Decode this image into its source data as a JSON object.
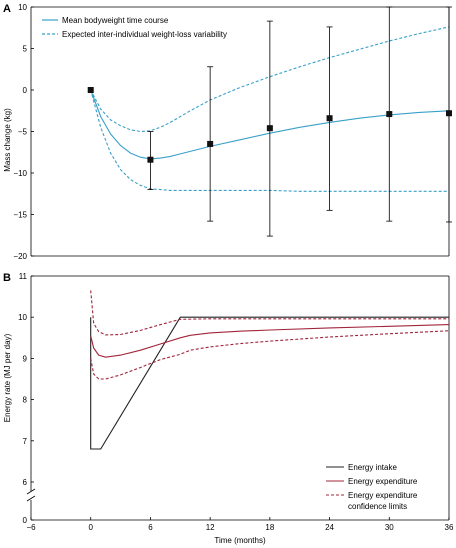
{
  "colors": {
    "mean": "#3aa0c9",
    "variability": "#3aa0c9",
    "intake": "#222222",
    "expenditure": "#a0253a",
    "confidence": "#a0253a",
    "panel_bg": "#ffffff"
  },
  "chart_data": [
    {
      "panel": "A",
      "type": "line",
      "ylabel": "Mass change (kg)",
      "ylim": [
        -20,
        10
      ],
      "yticks": [
        10,
        5,
        0,
        -5,
        -10,
        -15,
        -20
      ],
      "xlim": [
        -6,
        36
      ],
      "grid": false,
      "legend_position": "top-left",
      "series": [
        {
          "name": "Mean bodyweight time course",
          "style": "solid",
          "x": [
            0,
            1,
            2,
            3,
            4,
            5,
            6,
            7,
            8,
            9,
            10,
            12,
            15,
            18,
            21,
            24,
            27,
            30,
            33,
            36
          ],
          "y": [
            0,
            -3.2,
            -5.3,
            -6.7,
            -7.6,
            -8.1,
            -8.3,
            -8.2,
            -8.0,
            -7.7,
            -7.4,
            -6.8,
            -6.0,
            -5.2,
            -4.5,
            -3.9,
            -3.4,
            -3.0,
            -2.7,
            -2.5
          ]
        },
        {
          "name": "Expected inter-individual weight-loss variability",
          "style": "dashed",
          "x": [
            0,
            1,
            2,
            3,
            4,
            5,
            6,
            7,
            8,
            9,
            10,
            12,
            15,
            18,
            21,
            24,
            27,
            30,
            33,
            36
          ],
          "y": [
            0,
            -2.3,
            -3.6,
            -4.3,
            -4.8,
            -5.0,
            -4.9,
            -4.5,
            -3.9,
            -3.2,
            -2.5,
            -1.2,
            0.3,
            1.6,
            2.8,
            3.9,
            4.9,
            5.9,
            6.8,
            7.6
          ]
        },
        {
          "name": "",
          "style": "dashed",
          "x": [
            0,
            1,
            2,
            3,
            4,
            5,
            6,
            7,
            8,
            9,
            10,
            12,
            15,
            18,
            21,
            24,
            27,
            30,
            33,
            36
          ],
          "y": [
            0,
            -4.5,
            -7.6,
            -9.6,
            -10.8,
            -11.5,
            -11.9,
            -12.0,
            -12.1,
            -12.1,
            -12.1,
            -12.1,
            -12.1,
            -12.1,
            -12.2,
            -12.2,
            -12.2,
            -12.2,
            -12.2,
            -12.2
          ]
        }
      ],
      "observed": {
        "x": [
          0,
          6,
          12,
          18,
          24,
          30,
          36
        ],
        "y": [
          0,
          -8.4,
          -6.5,
          -4.6,
          -3.4,
          -2.9,
          -2.8
        ],
        "error_low": [
          0,
          -12.0,
          -15.8,
          -17.6,
          -14.5,
          -15.8,
          -15.9
        ],
        "error_high": [
          0,
          -5.0,
          2.8,
          8.3,
          7.6,
          10.0,
          10.0
        ]
      }
    },
    {
      "panel": "B",
      "type": "line",
      "xlabel": "Time (months)",
      "ylabel": "Energy rate (MJ per day)",
      "ylim": [
        0,
        11
      ],
      "yticks": [
        11,
        10,
        9,
        8,
        7,
        6,
        0
      ],
      "axis_break": "between 0 and 6",
      "xlim": [
        -6,
        36
      ],
      "xticks": [
        -6,
        0,
        6,
        12,
        18,
        24,
        30,
        36
      ],
      "grid": false,
      "legend_position": "bottom-right",
      "series": [
        {
          "name": "Energy intake",
          "style": "solid",
          "x": [
            0,
            0,
            1,
            9,
            36
          ],
          "y": [
            10.0,
            6.8,
            6.8,
            10.0,
            10.0
          ]
        },
        {
          "name": "Energy expenditure",
          "style": "solid",
          "x": [
            0,
            0.3,
            0.8,
            1.5,
            3,
            5,
            7,
            9,
            10,
            12,
            15,
            18,
            24,
            30,
            36
          ],
          "y": [
            9.55,
            9.25,
            9.08,
            9.03,
            9.08,
            9.2,
            9.35,
            9.5,
            9.56,
            9.62,
            9.66,
            9.69,
            9.74,
            9.78,
            9.82
          ]
        },
        {
          "name": "Energy expenditure confidence limits",
          "style": "dashed",
          "x": [
            0,
            0.3,
            0.8,
            1.5,
            3,
            5,
            7,
            9,
            12,
            18,
            24,
            30,
            36
          ],
          "y": [
            10.65,
            9.85,
            9.65,
            9.57,
            9.58,
            9.68,
            9.82,
            9.95,
            9.96,
            9.96,
            9.96,
            9.96,
            9.96
          ]
        },
        {
          "name": "",
          "style": "dashed",
          "x": [
            0,
            0.3,
            0.8,
            1.5,
            3,
            5,
            7,
            9,
            10,
            12,
            15,
            18,
            24,
            30,
            36
          ],
          "y": [
            9.0,
            8.62,
            8.5,
            8.5,
            8.6,
            8.78,
            8.97,
            9.1,
            9.2,
            9.28,
            9.36,
            9.42,
            9.52,
            9.6,
            9.67
          ]
        }
      ]
    }
  ]
}
